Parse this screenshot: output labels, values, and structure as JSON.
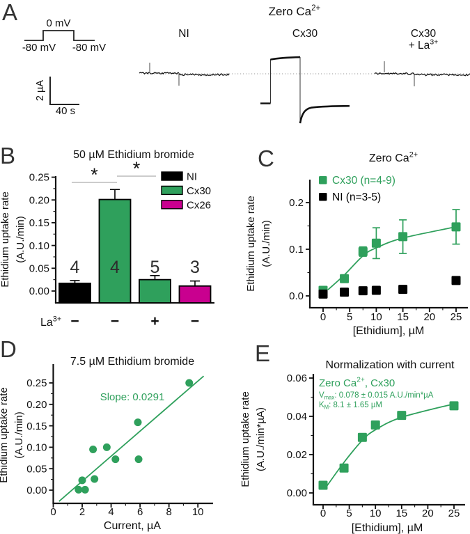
{
  "colors": {
    "green": "#2FA05C",
    "magenta": "#C9008F",
    "black": "#000000"
  },
  "panels": {
    "a": {
      "label": "A",
      "title": [
        {
          "t": "Zero Ca"
        },
        {
          "t": "2+",
          "sup": true
        }
      ],
      "protocol": {
        "top": "0 mV",
        "left": "-80 mV",
        "right": "-80 mV"
      },
      "scale_vertical": "2 µA",
      "scale_horizontal": "40 s",
      "trace_labels": [
        {
          "lines": [
            [
              {
                "t": "NI"
              }
            ]
          ]
        },
        {
          "lines": [
            [
              {
                "t": "Cx30"
              }
            ]
          ]
        },
        {
          "lines": [
            [
              {
                "t": "Cx30"
              }
            ],
            [
              {
                "t": "+ La"
              },
              {
                "t": "3+",
                "sup": true
              }
            ]
          ]
        }
      ]
    },
    "b": {
      "label": "B"
    },
    "c": {
      "label": "C"
    },
    "d": {
      "label": "D"
    },
    "e": {
      "label": "E"
    }
  },
  "chart_data": [
    {
      "panel": "B",
      "type": "bar",
      "title": [
        {
          "t": "50 µM Ethidium bromide"
        }
      ],
      "ylabel": [
        "Ethidium uptake rate",
        "(A.U./min)"
      ],
      "ylim": [
        0,
        0.25
      ],
      "yticks": [
        0,
        0.05,
        0.1,
        0.15,
        0.2,
        0.25
      ],
      "groups": [
        {
          "name": "NI",
          "color": "black",
          "value": 0.017,
          "error": 0.006,
          "n": "4",
          "la": "−"
        },
        {
          "name": "Cx30",
          "color": "green",
          "value": 0.201,
          "error": 0.022,
          "n": "4",
          "la": "−"
        },
        {
          "name": "Cx30 + La3+",
          "color": "green",
          "value": 0.025,
          "error": 0.009,
          "n": "5",
          "la": "+"
        },
        {
          "name": "Cx26",
          "color": "magenta",
          "value": 0.011,
          "error": 0.011,
          "n": "3",
          "la": "−"
        }
      ],
      "la_label": [
        {
          "t": "La"
        },
        {
          "t": "3+",
          "sup": true
        }
      ],
      "legend": [
        {
          "label": "NI",
          "color": "black"
        },
        {
          "label": "Cx30",
          "color": "green"
        },
        {
          "label": "Cx26",
          "color": "magenta"
        }
      ],
      "significance": [
        {
          "from": 0,
          "to": 1,
          "symbol": "*"
        },
        {
          "from": 1,
          "to": 2,
          "symbol": "*"
        }
      ]
    },
    {
      "panel": "C",
      "type": "scatter",
      "title": [
        {
          "t": "Zero Ca"
        },
        {
          "t": "2+",
          "sup": true
        }
      ],
      "xlabel": "[Ethidium], µM",
      "ylabel": [
        "Ethidium uptake rate",
        "(A.U./min)"
      ],
      "xlim": [
        0,
        25
      ],
      "ylim": [
        0,
        0.2
      ],
      "xticks": [
        0,
        5,
        10,
        15,
        20,
        25
      ],
      "yticks": [
        0,
        0.1,
        0.2
      ],
      "series": [
        {
          "name": [
            {
              "t": "Cx30 (n=4-9)"
            }
          ],
          "color": "green",
          "marker": "square",
          "points": [
            {
              "x": 0,
              "y": 0.012,
              "err": 0.005
            },
            {
              "x": 4,
              "y": 0.037,
              "err": 0.006
            },
            {
              "x": 7.5,
              "y": 0.095,
              "err": 0.01
            },
            {
              "x": 10,
              "y": 0.113,
              "err": 0.033
            },
            {
              "x": 15,
              "y": 0.127,
              "err": 0.036
            },
            {
              "x": 25,
              "y": 0.148,
              "err": 0.037
            }
          ],
          "fit_anchors": [
            [
              0.9,
              0.013
            ],
            [
              4,
              0.045
            ],
            [
              7.5,
              0.086
            ],
            [
              10,
              0.103
            ],
            [
              15,
              0.124
            ],
            [
              25,
              0.148
            ]
          ]
        },
        {
          "name": [
            {
              "t": "NI (n=3-5)"
            }
          ],
          "color": "black",
          "marker": "square",
          "points": [
            {
              "x": 0,
              "y": 0.004
            },
            {
              "x": 4,
              "y": 0.008
            },
            {
              "x": 7.5,
              "y": 0.011
            },
            {
              "x": 10,
              "y": 0.012
            },
            {
              "x": 15,
              "y": 0.014
            },
            {
              "x": 25,
              "y": 0.033
            }
          ]
        }
      ]
    },
    {
      "panel": "D",
      "type": "scatter",
      "title": [
        {
          "t": "7.5 µM Ethidium bromide"
        }
      ],
      "xlabel": "Current, µA",
      "ylabel": [
        "Ethidium uptake rate",
        "(A.U./min)"
      ],
      "xlim": [
        0,
        11
      ],
      "ylim": [
        0,
        0.25
      ],
      "xticks": [
        0,
        2,
        4,
        6,
        8,
        10
      ],
      "yticks": [
        0,
        0.05,
        0.1,
        0.15,
        0.2,
        0.25
      ],
      "series": [
        {
          "name": [
            {
              "t": "Cx30"
            }
          ],
          "color": "green",
          "marker": "circle",
          "points": [
            {
              "x": 1.75,
              "y": 0.001
            },
            {
              "x": 2.0,
              "y": 0.023
            },
            {
              "x": 2.2,
              "y": 0.001
            },
            {
              "x": 2.75,
              "y": 0.095
            },
            {
              "x": 2.85,
              "y": 0.026
            },
            {
              "x": 3.7,
              "y": 0.1
            },
            {
              "x": 4.3,
              "y": 0.072
            },
            {
              "x": 5.85,
              "y": 0.158
            },
            {
              "x": 5.9,
              "y": 0.072
            },
            {
              "x": 9.4,
              "y": 0.25
            }
          ]
        }
      ],
      "fit_line": {
        "x1": 0.4,
        "y1": -0.026,
        "x2": 10.4,
        "y2": 0.266
      },
      "annotation": {
        "text": [
          {
            "t": "Slope: 0.0291"
          }
        ],
        "color": "green"
      }
    },
    {
      "panel": "E",
      "type": "scatter",
      "title": [
        {
          "t": "Normalization with current"
        }
      ],
      "xlabel": "[Ethidium], µM",
      "ylabel": [
        "Ethidium uptake rate",
        "(A.U./min*µA)"
      ],
      "xlim": [
        0,
        25
      ],
      "ylim": [
        0,
        0.06
      ],
      "xticks": [
        0,
        5,
        10,
        15,
        20,
        25
      ],
      "yticks": [
        0,
        0.02,
        0.04,
        0.06
      ],
      "series": [
        {
          "name": [
            {
              "t": "Cx30"
            }
          ],
          "color": "green",
          "marker": "square",
          "points": [
            {
              "x": 0,
              "y": 0.004
            },
            {
              "x": 4,
              "y": 0.013
            },
            {
              "x": 7.5,
              "y": 0.029
            },
            {
              "x": 10,
              "y": 0.0355
            },
            {
              "x": 15,
              "y": 0.0405
            },
            {
              "x": 25,
              "y": 0.0455
            }
          ],
          "fit_anchors": [
            [
              0.3,
              0.002
            ],
            [
              4,
              0.016
            ],
            [
              7.5,
              0.0275
            ],
            [
              10,
              0.033
            ],
            [
              15,
              0.0395
            ],
            [
              25,
              0.0465
            ]
          ]
        }
      ],
      "annotations": [
        {
          "text": [
            {
              "t": "Zero Ca"
            },
            {
              "t": "2+",
              "sup": true
            },
            {
              "t": ", Cx30"
            }
          ],
          "size": 15
        },
        {
          "text": [
            {
              "t": "V"
            },
            {
              "t": "max",
              "sub": true
            },
            {
              "t": ": 0.078 ± 0.015 A.U./min*µA"
            }
          ],
          "size": 11.5
        },
        {
          "text": [
            {
              "t": "K"
            },
            {
              "t": "M",
              "sub": true
            },
            {
              "t": ": 8.1 ± 1.65  µM"
            }
          ],
          "size": 11.5
        }
      ]
    }
  ]
}
